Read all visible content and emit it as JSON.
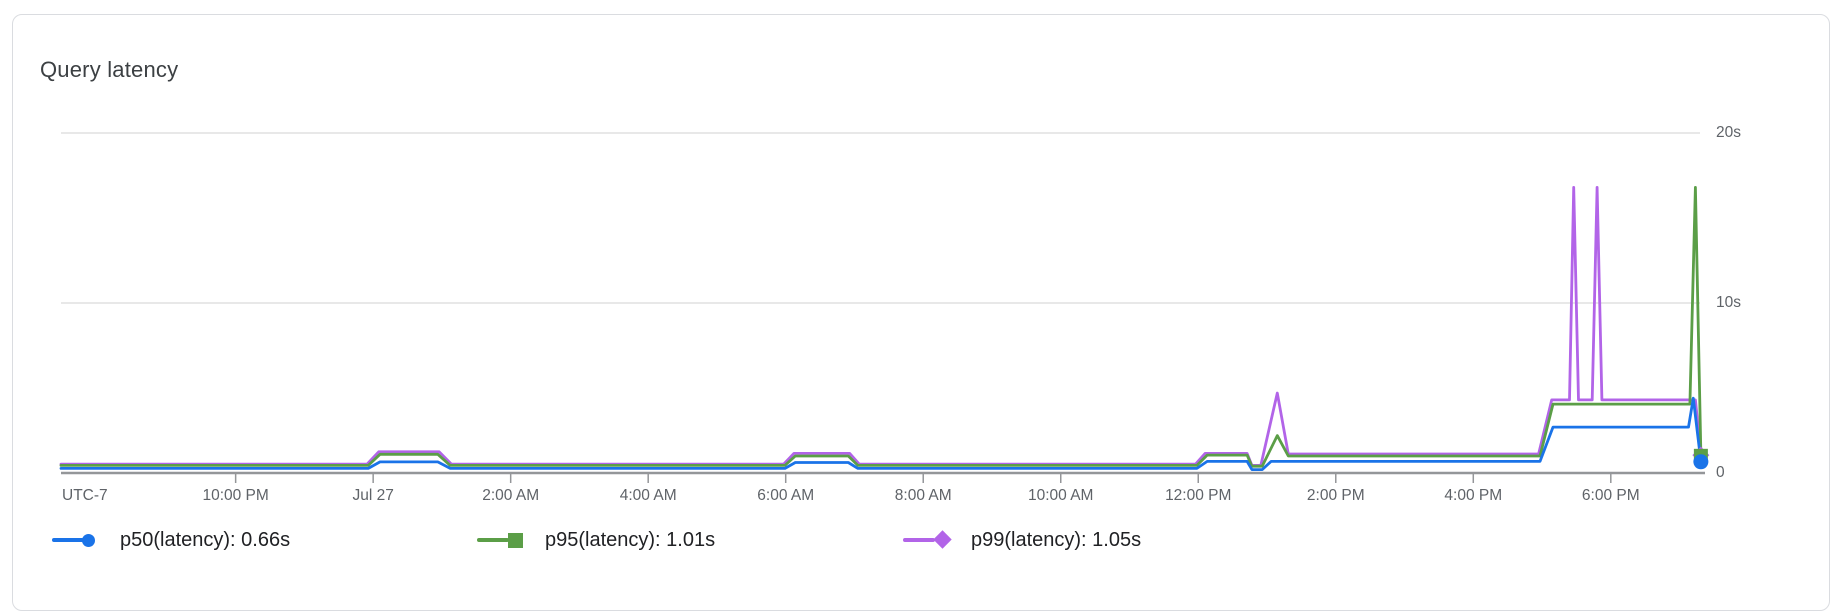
{
  "card": {
    "title": "Query latency",
    "border_color": "#dadce0"
  },
  "chart_data": {
    "type": "line",
    "title": "Query latency",
    "unit": "seconds",
    "grid": true,
    "legend_position": "bottom",
    "x_axis": {
      "timezone_label": "UTC-7",
      "tick_labels": [
        "10:00 PM",
        "Jul 27",
        "2:00 AM",
        "4:00 AM",
        "6:00 AM",
        "8:00 AM",
        "10:00 AM",
        "12:00 PM",
        "2:00 PM",
        "4:00 PM",
        "6:00 PM"
      ],
      "tick_positions_hours": [
        2.54,
        4.54,
        6.54,
        8.54,
        10.54,
        12.54,
        14.54,
        16.54,
        18.54,
        20.54,
        22.54
      ],
      "total_hours": 23.91
    },
    "y_axis": {
      "min": 0,
      "max_seconds": 20,
      "ticks": [
        {
          "value": 20,
          "label": "20s"
        },
        {
          "value": 10,
          "label": "10s"
        },
        {
          "value": 0,
          "label": "0"
        }
      ]
    },
    "series": [
      {
        "name": "p99(latency)",
        "current_value": "1.05s",
        "color": "#b264e8",
        "marker": "diamond",
        "points": [
          [
            0,
            0.52
          ],
          [
            4.45,
            0.52
          ],
          [
            4.62,
            1.25
          ],
          [
            5.5,
            1.25
          ],
          [
            5.68,
            0.52
          ],
          [
            10.51,
            0.52
          ],
          [
            10.66,
            1.15
          ],
          [
            11.47,
            1.15
          ],
          [
            11.61,
            0.52
          ],
          [
            16.5,
            0.52
          ],
          [
            16.64,
            1.15
          ],
          [
            17.25,
            1.15
          ],
          [
            17.32,
            0.45
          ],
          [
            17.45,
            0.45
          ],
          [
            17.69,
            4.7
          ],
          [
            17.85,
            1.12
          ],
          [
            21.49,
            1.12
          ],
          [
            21.68,
            4.3
          ],
          [
            21.94,
            4.3
          ],
          [
            22.0,
            16.8
          ],
          [
            22.07,
            4.3
          ],
          [
            22.27,
            4.3
          ],
          [
            22.34,
            16.8
          ],
          [
            22.41,
            4.3
          ],
          [
            23.77,
            4.3
          ],
          [
            23.85,
            1.05
          ]
        ]
      },
      {
        "name": "p95(latency)",
        "current_value": "1.01s",
        "color": "#5b9e47",
        "marker": "square",
        "points": [
          [
            0,
            0.45
          ],
          [
            4.47,
            0.45
          ],
          [
            4.64,
            1.1
          ],
          [
            5.48,
            1.1
          ],
          [
            5.66,
            0.45
          ],
          [
            10.53,
            0.45
          ],
          [
            10.68,
            1.0
          ],
          [
            11.45,
            1.0
          ],
          [
            11.59,
            0.45
          ],
          [
            16.52,
            0.45
          ],
          [
            16.67,
            1.05
          ],
          [
            17.25,
            1.05
          ],
          [
            17.32,
            0.4
          ],
          [
            17.47,
            0.4
          ],
          [
            17.69,
            2.2
          ],
          [
            17.85,
            1.0
          ],
          [
            21.51,
            1.0
          ],
          [
            21.7,
            4.05
          ],
          [
            23.69,
            4.05
          ],
          [
            23.77,
            16.8
          ],
          [
            23.85,
            1.01
          ]
        ]
      },
      {
        "name": "p50(latency)",
        "current_value": "0.66s",
        "color": "#1a73e8",
        "marker": "circle",
        "points": [
          [
            0,
            0.27
          ],
          [
            4.47,
            0.27
          ],
          [
            4.64,
            0.65
          ],
          [
            5.48,
            0.65
          ],
          [
            5.66,
            0.27
          ],
          [
            10.53,
            0.27
          ],
          [
            10.68,
            0.62
          ],
          [
            11.45,
            0.62
          ],
          [
            11.59,
            0.27
          ],
          [
            16.52,
            0.27
          ],
          [
            16.67,
            0.68
          ],
          [
            17.25,
            0.68
          ],
          [
            17.32,
            0.2
          ],
          [
            17.47,
            0.2
          ],
          [
            17.6,
            0.68
          ],
          [
            21.51,
            0.68
          ],
          [
            21.7,
            2.7
          ],
          [
            23.67,
            2.7
          ],
          [
            23.74,
            4.4
          ],
          [
            23.85,
            0.66
          ]
        ]
      }
    ]
  },
  "legend": {
    "items": [
      {
        "label": "p50(latency): 0.66s",
        "color": "#1a73e8",
        "marker": "circle"
      },
      {
        "label": "p95(latency): 1.01s",
        "color": "#5b9e47",
        "marker": "square"
      },
      {
        "label": "p99(latency): 1.05s",
        "color": "#b264e8",
        "marker": "diamond"
      }
    ]
  },
  "colors": {
    "gridline": "#e0e0e0",
    "axis": "#949699",
    "axis_text": "#5f6368",
    "title_text": "#3c4043",
    "legend_text": "#202124"
  }
}
